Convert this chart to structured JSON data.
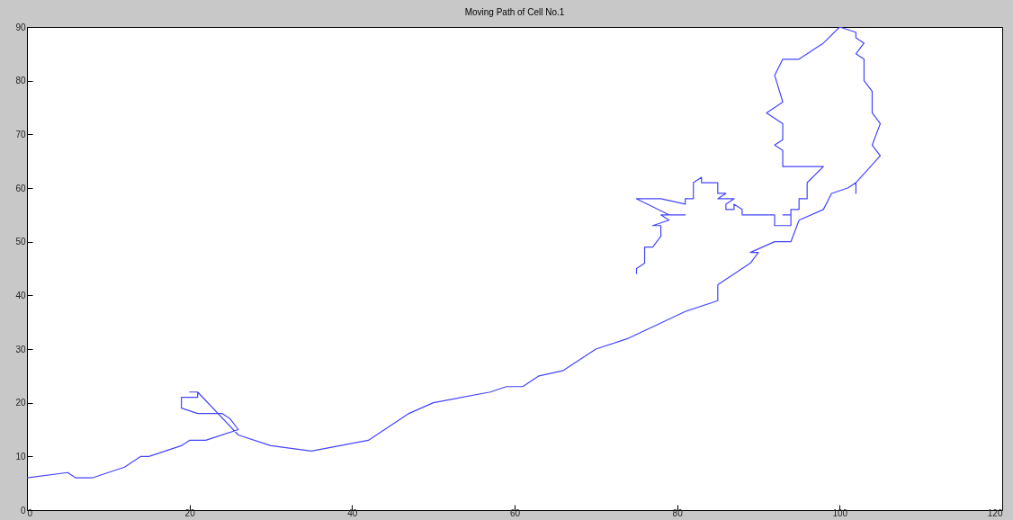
{
  "chart_data": {
    "type": "line",
    "title": "Moving Path of Cell No.1",
    "x": [
      0,
      5,
      6,
      8,
      12,
      14,
      15,
      19,
      20,
      22,
      26,
      25,
      24,
      21,
      19,
      19,
      21,
      21,
      20,
      21,
      26,
      30,
      35,
      42,
      47,
      50,
      57,
      59,
      61,
      63,
      66,
      70,
      74,
      81,
      85,
      85,
      89,
      90,
      89,
      92,
      94,
      95,
      98,
      99,
      101,
      102,
      102,
      102,
      105,
      104,
      105,
      104,
      104,
      103,
      103,
      102,
      103,
      102,
      102,
      100,
      98,
      97,
      95,
      93,
      92,
      93,
      91,
      93,
      93,
      92,
      93,
      93,
      98,
      96,
      96,
      95,
      95,
      94,
      94,
      93,
      94,
      94,
      93,
      92,
      92,
      88,
      88,
      87,
      87,
      86,
      86,
      87,
      85,
      86,
      85,
      85,
      83,
      83,
      82,
      82,
      81,
      81,
      78,
      75,
      79,
      81,
      78,
      79,
      77,
      78,
      78,
      77,
      76,
      76,
      75,
      75
    ],
    "values": [
      6,
      7,
      6,
      6,
      8,
      10,
      10,
      12,
      13,
      13,
      15,
      17,
      18,
      18,
      19,
      21,
      21,
      22,
      22,
      22,
      14,
      12,
      11,
      13,
      18,
      20,
      22,
      23,
      23,
      25,
      26,
      30,
      32,
      37,
      39,
      42,
      46,
      48,
      48,
      50,
      50,
      54,
      56,
      59,
      60,
      61,
      59,
      61,
      66,
      68,
      72,
      74,
      78,
      80,
      84,
      85,
      87,
      88,
      89,
      90,
      87,
      86,
      84,
      84,
      81,
      76,
      74,
      72,
      69,
      68,
      67,
      64,
      64,
      61,
      58,
      58,
      56,
      56,
      55,
      55,
      55,
      53,
      53,
      53,
      55,
      55,
      56,
      57,
      56,
      56,
      57,
      58,
      58,
      59,
      59,
      61,
      61,
      62,
      61,
      58,
      58,
      57,
      58,
      58,
      55,
      55,
      55,
      54,
      53,
      53,
      51,
      49,
      49,
      46,
      45,
      44
    ],
    "color": "#4444ff",
    "xlim": [
      0,
      120
    ],
    "ylim": [
      0,
      90
    ],
    "xticks": [
      0,
      20,
      40,
      60,
      80,
      100,
      120
    ],
    "yticks": [
      0,
      10,
      20,
      30,
      40,
      50,
      60,
      70,
      80,
      90
    ],
    "grid": false
  }
}
